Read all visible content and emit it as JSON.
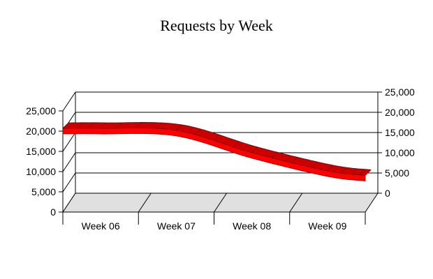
{
  "chart_data": {
    "type": "line",
    "title": "Requests by Week",
    "categories": [
      "Week 06",
      "Week 07",
      "Week 08",
      "Week 09"
    ],
    "series": [
      {
        "values": [
          20000,
          19500,
          14000,
          9500
        ],
        "color": "#ff0000"
      }
    ],
    "ylim": [
      0,
      25000
    ],
    "yticks": [
      0,
      5000,
      10000,
      15000,
      20000,
      25000
    ],
    "ytick_labels": [
      "0",
      "5,000",
      "10,000",
      "15,000",
      "20,000",
      "25,000"
    ],
    "style": "3d",
    "grid": true,
    "floor_color": "#e0e0e0"
  }
}
